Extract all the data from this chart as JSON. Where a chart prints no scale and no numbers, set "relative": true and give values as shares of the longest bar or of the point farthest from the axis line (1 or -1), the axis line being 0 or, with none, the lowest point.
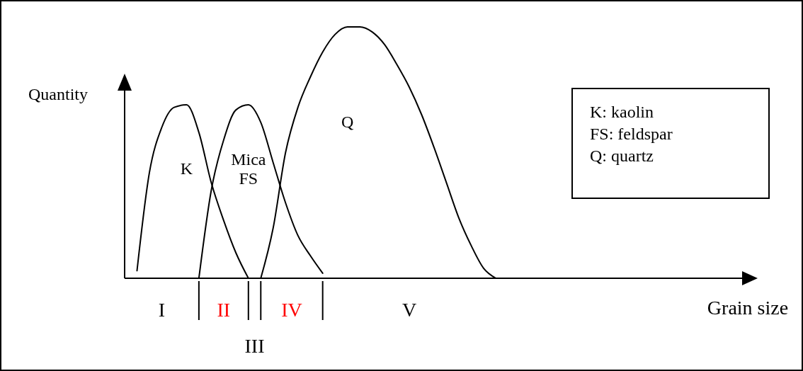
{
  "chart_data": {
    "type": "line",
    "relative": true,
    "xlabel": "Grain size",
    "ylabel": "Quantity",
    "legend": false,
    "categories": [
      null,
      null,
      null,
      null,
      null,
      null,
      null,
      null,
      null,
      null,
      null,
      null,
      null,
      null,
      null,
      null,
      null,
      null,
      null,
      null,
      null,
      null,
      null,
      null,
      null,
      null,
      null,
      null,
      null,
      null,
      null,
      null,
      null,
      null,
      null,
      null,
      null,
      null,
      null,
      null,
      null,
      null,
      null,
      null,
      null,
      null,
      null,
      null,
      null,
      null,
      null
    ],
    "series": [
      {
        "name": "K",
        "color": "#000000",
        "values": [
          null,
          0.03,
          0.42,
          0.6,
          0.68,
          0.69,
          0.58,
          0.38,
          0.23,
          0.1,
          0.0,
          null,
          null,
          null,
          null,
          null,
          null,
          null,
          null,
          null,
          null,
          null,
          null,
          null,
          null,
          null,
          null,
          null,
          null,
          null,
          null,
          null,
          null,
          null,
          null,
          null,
          null,
          null,
          null,
          null,
          null,
          null,
          null,
          null,
          null,
          null,
          null,
          null,
          null,
          null,
          null
        ]
      },
      {
        "name": "Mica FS",
        "color": "#000000",
        "values": [
          null,
          null,
          null,
          null,
          null,
          null,
          0.0,
          0.35,
          0.55,
          0.67,
          0.69,
          0.62,
          0.46,
          0.3,
          0.17,
          0.09,
          0.02,
          null,
          null,
          null,
          null,
          null,
          null,
          null,
          null,
          null,
          null,
          null,
          null,
          null,
          null,
          null,
          null,
          null,
          null,
          null,
          null,
          null,
          null,
          null,
          null,
          null,
          null,
          null,
          null,
          null,
          null,
          null,
          null,
          null,
          null
        ]
      },
      {
        "name": "Q",
        "color": "#000000",
        "values": [
          null,
          null,
          null,
          null,
          null,
          null,
          null,
          null,
          null,
          null,
          null,
          0.0,
          0.2,
          0.5,
          0.68,
          0.8,
          0.9,
          0.97,
          1.0,
          1.0,
          0.98,
          0.93,
          0.85,
          0.76,
          0.65,
          0.52,
          0.38,
          0.24,
          0.13,
          0.04,
          0.0,
          null,
          null,
          null,
          null,
          null,
          null,
          null,
          null,
          null,
          null,
          null,
          null,
          null,
          null,
          null,
          null,
          null,
          null,
          null,
          null
        ]
      }
    ],
    "annotations": [
      "I",
      "II",
      "III",
      "IV",
      "V",
      "K: kaolin",
      "FS: feldspar",
      "Q: quartz"
    ]
  }
}
